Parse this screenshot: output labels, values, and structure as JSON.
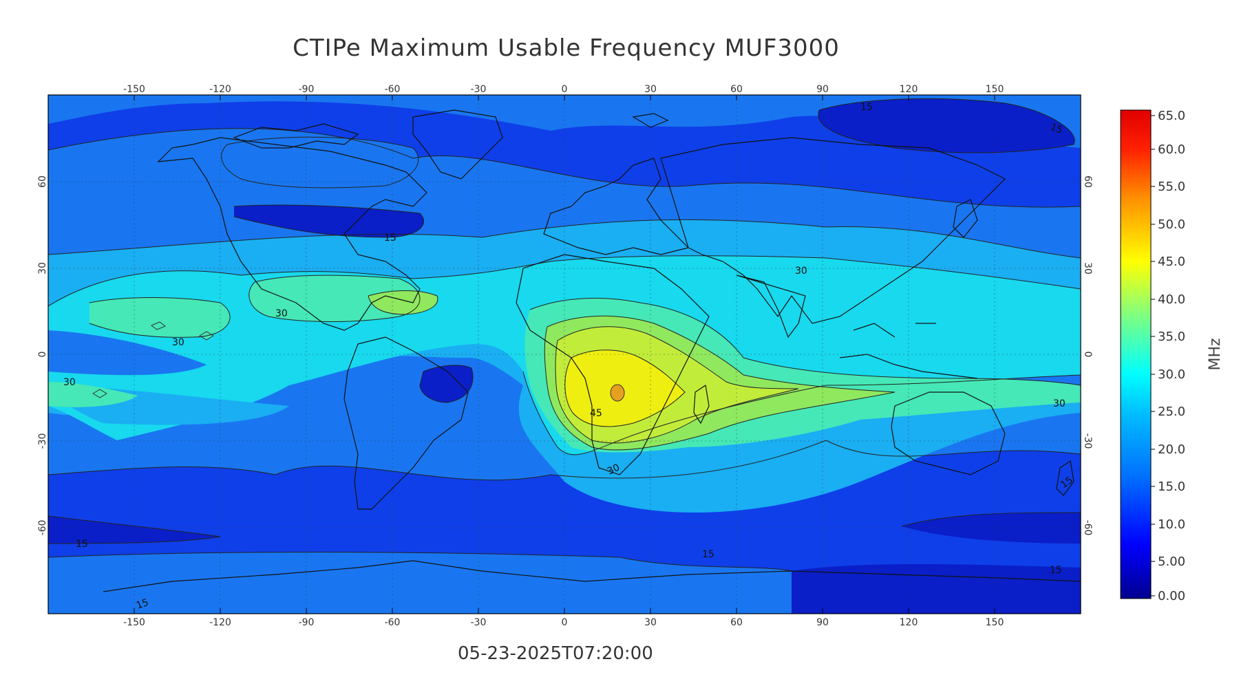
{
  "title": "CTIPe Maximum Usable Frequency MUF3000",
  "timestamp": "05-23-2025T07:20:00",
  "map": {
    "lon_ticks": [
      "-150",
      "-120",
      "-90",
      "-60",
      "-30",
      "0",
      "30",
      "60",
      "90",
      "120",
      "150"
    ],
    "lat_ticks": [
      "60",
      "30",
      "0",
      "-30",
      "-60"
    ],
    "contour_labels": [
      "15",
      "15",
      "15",
      "15",
      "15",
      "15",
      "15",
      "15",
      "30",
      "30",
      "30",
      "30",
      "30",
      "45"
    ]
  },
  "colorbar": {
    "unit": "MHz",
    "ticks": [
      "65.0",
      "60.0",
      "55.0",
      "50.0",
      "45.0",
      "40.0",
      "35.0",
      "30.0",
      "25.0",
      "20.0",
      "15.0",
      "10.0",
      "5.00",
      "0.00"
    ],
    "range": [
      0,
      65
    ],
    "colors": [
      "#00008f",
      "#0000ff",
      "#0070ff",
      "#00dfff",
      "#50ffaf",
      "#bfff40",
      "#ffdf00",
      "#ff7000",
      "#ef0000",
      "#8f0000"
    ]
  },
  "level_colors": {
    "band_0_10": "#0a1fc8",
    "band_10_15": "#0f3fe8",
    "band_15_20": "#1976f0",
    "band_20_25": "#1aaef2",
    "band_25_30": "#18d9ee",
    "band_30_35": "#45e8b6",
    "band_35_40": "#8fe85e",
    "band_40_45": "#c2ec3a",
    "band_45_50": "#eeee10",
    "band_50_55": "#e6a020"
  }
}
